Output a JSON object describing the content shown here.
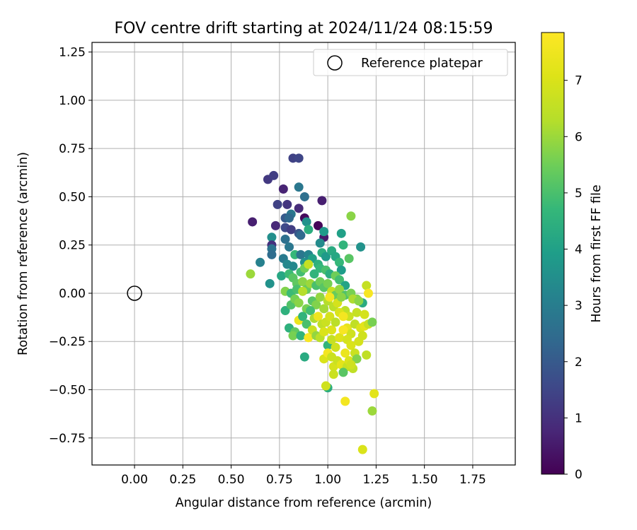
{
  "chart_data": {
    "type": "scatter",
    "title": "FOV centre drift starting at 2024/11/24 08:15:59",
    "xlabel": "Angular distance from reference (arcmin)",
    "ylabel": "Rotation from reference (arcmin)",
    "xlim": [
      -0.22,
      1.97
    ],
    "ylim": [
      -0.89,
      1.3
    ],
    "xticks": [
      0.0,
      0.25,
      0.5,
      0.75,
      1.0,
      1.25,
      1.5,
      1.75
    ],
    "xtick_labels": [
      "0.00",
      "0.25",
      "0.50",
      "0.75",
      "1.00",
      "1.25",
      "1.50",
      "1.75"
    ],
    "yticks": [
      1.25,
      1.0,
      0.75,
      0.5,
      0.25,
      0.0,
      -0.25,
      -0.5,
      -0.75
    ],
    "ytick_labels": [
      "1.25",
      "1.00",
      "0.75",
      "0.50",
      "0.25",
      "0.00",
      "−0.25",
      "−0.50",
      "−0.75"
    ],
    "grid": true,
    "legend": {
      "position": "top-right",
      "entries": [
        "Reference platepar"
      ]
    },
    "reference": {
      "x": 0.0,
      "y": 0.0,
      "label": "Reference platepar"
    },
    "colorbar": {
      "label": "Hours from first FF file",
      "range": [
        0,
        7.85
      ],
      "ticks": [
        0,
        1,
        2,
        3,
        4,
        5,
        6,
        7
      ],
      "colormap": "viridis"
    },
    "points": [
      [
        0.69,
        0.59,
        1.2
      ],
      [
        0.72,
        0.61,
        1.3
      ],
      [
        0.82,
        0.7,
        1.4
      ],
      [
        0.85,
        0.7,
        1.5
      ],
      [
        0.77,
        0.54,
        0.7
      ],
      [
        0.85,
        0.55,
        2.8
      ],
      [
        0.88,
        0.5,
        2.6
      ],
      [
        0.74,
        0.46,
        1.4
      ],
      [
        0.79,
        0.46,
        1.1
      ],
      [
        0.85,
        0.44,
        0.9
      ],
      [
        0.97,
        0.48,
        0.6
      ],
      [
        0.61,
        0.37,
        0.6
      ],
      [
        0.73,
        0.35,
        0.8
      ],
      [
        0.78,
        0.39,
        2.0
      ],
      [
        0.81,
        0.41,
        2.8
      ],
      [
        0.8,
        0.39,
        2.4
      ],
      [
        0.88,
        0.39,
        0.2
      ],
      [
        0.89,
        0.37,
        3.6
      ],
      [
        0.95,
        0.35,
        0.1
      ],
      [
        0.98,
        0.29,
        0.5
      ],
      [
        0.71,
        0.29,
        3.5
      ],
      [
        0.71,
        0.25,
        1.0
      ],
      [
        0.71,
        0.23,
        2.7
      ],
      [
        0.71,
        0.2,
        2.5
      ],
      [
        0.78,
        0.28,
        2.6
      ],
      [
        0.78,
        0.34,
        1.6
      ],
      [
        0.81,
        0.33,
        1.3
      ],
      [
        0.8,
        0.24,
        2.8
      ],
      [
        0.85,
        0.31,
        1.9
      ],
      [
        0.86,
        0.3,
        2.4
      ],
      [
        0.9,
        0.33,
        4.4
      ],
      [
        0.96,
        0.26,
        3.4
      ],
      [
        0.98,
        0.32,
        3.8
      ],
      [
        1.07,
        0.31,
        4.0
      ],
      [
        1.12,
        0.4,
        5.8
      ],
      [
        1.08,
        0.25,
        4.6
      ],
      [
        1.17,
        0.24,
        3.6
      ],
      [
        0.65,
        0.16,
        3.1
      ],
      [
        0.6,
        0.1,
        6.0
      ],
      [
        0.7,
        0.05,
        3.6
      ],
      [
        0.77,
        0.18,
        2.9
      ],
      [
        0.79,
        0.15,
        3.3
      ],
      [
        0.82,
        0.14,
        3.3
      ],
      [
        0.83,
        0.2,
        4.7
      ],
      [
        0.86,
        0.2,
        2.8
      ],
      [
        0.88,
        0.16,
        3.6
      ],
      [
        0.9,
        0.2,
        3.2
      ],
      [
        0.92,
        0.18,
        4.0
      ],
      [
        0.95,
        0.15,
        4.5
      ],
      [
        0.97,
        0.21,
        4.4
      ],
      [
        0.99,
        0.19,
        3.8
      ],
      [
        1.02,
        0.22,
        4.3
      ],
      [
        1.04,
        0.19,
        4.2
      ],
      [
        1.06,
        0.16,
        4.7
      ],
      [
        1.11,
        0.18,
        5.2
      ],
      [
        1.07,
        0.12,
        3.9
      ],
      [
        0.76,
        0.09,
        4.2
      ],
      [
        0.8,
        0.1,
        4.8
      ],
      [
        0.82,
        0.08,
        5.2
      ],
      [
        0.84,
        0.05,
        5.3
      ],
      [
        0.86,
        0.11,
        4.9
      ],
      [
        0.88,
        0.13,
        5.5
      ],
      [
        0.9,
        0.15,
        6.6
      ],
      [
        0.93,
        0.1,
        4.6
      ],
      [
        0.96,
        0.13,
        4.7
      ],
      [
        0.99,
        0.12,
        5.0
      ],
      [
        1.01,
        0.1,
        4.4
      ],
      [
        1.04,
        0.09,
        5.5
      ],
      [
        1.06,
        0.07,
        4.9
      ],
      [
        1.09,
        0.04,
        4.1
      ],
      [
        0.78,
        0.01,
        5.7
      ],
      [
        0.81,
        0.0,
        4.8
      ],
      [
        0.84,
        0.02,
        5.0
      ],
      [
        0.87,
        0.06,
        5.8
      ],
      [
        0.89,
        0.02,
        5.4
      ],
      [
        0.91,
        0.05,
        6.0
      ],
      [
        0.94,
        0.04,
        5.0
      ],
      [
        0.96,
        0.06,
        5.5
      ],
      [
        0.98,
        0.03,
        5.2
      ],
      [
        1.0,
        0.05,
        5.6
      ],
      [
        1.02,
        0.01,
        6.6
      ],
      [
        1.04,
        -0.01,
        5.4
      ],
      [
        1.06,
        0.02,
        5.9
      ],
      [
        1.09,
        -0.01,
        5.1
      ],
      [
        1.12,
        0.0,
        5.6
      ],
      [
        1.15,
        -0.03,
        5.7
      ],
      [
        1.18,
        -0.05,
        4.3
      ],
      [
        1.2,
        0.04,
        6.6
      ],
      [
        1.21,
        0.0,
        7.7
      ],
      [
        0.78,
        -0.09,
        4.5
      ],
      [
        0.81,
        -0.06,
        5.1
      ],
      [
        0.83,
        -0.03,
        5.6
      ],
      [
        0.85,
        -0.05,
        5.8
      ],
      [
        0.87,
        0.01,
        6.3
      ],
      [
        0.89,
        -0.08,
        5.6
      ],
      [
        0.92,
        -0.04,
        5.2
      ],
      [
        0.94,
        -0.06,
        5.7
      ],
      [
        0.96,
        -0.02,
        5.9
      ],
      [
        0.98,
        -0.08,
        6.1
      ],
      [
        1.0,
        -0.04,
        6.3
      ],
      [
        1.01,
        -0.02,
        7.6
      ],
      [
        1.03,
        -0.07,
        6.4
      ],
      [
        1.05,
        -0.05,
        6.9
      ],
      [
        1.07,
        -0.02,
        5.8
      ],
      [
        1.09,
        -0.09,
        6.4
      ],
      [
        1.11,
        -0.12,
        6.7
      ],
      [
        1.13,
        -0.03,
        6.2
      ],
      [
        1.15,
        -0.1,
        6.6
      ],
      [
        1.16,
        -0.04,
        5.8
      ],
      [
        1.19,
        -0.11,
        6.9
      ],
      [
        0.8,
        -0.18,
        4.5
      ],
      [
        0.83,
        -0.2,
        5.3
      ],
      [
        0.85,
        -0.14,
        7.4
      ],
      [
        0.87,
        -0.12,
        4.6
      ],
      [
        0.89,
        -0.16,
        5.0
      ],
      [
        0.91,
        -0.09,
        4.9
      ],
      [
        0.93,
        -0.13,
        6.2
      ],
      [
        0.95,
        -0.12,
        7.5
      ],
      [
        0.97,
        -0.16,
        6.5
      ],
      [
        0.99,
        -0.15,
        6.7
      ],
      [
        1.01,
        -0.12,
        6.9
      ],
      [
        1.02,
        -0.19,
        7.1
      ],
      [
        1.04,
        -0.15,
        6.4
      ],
      [
        1.06,
        -0.1,
        7.0
      ],
      [
        1.08,
        -0.12,
        7.6
      ],
      [
        1.1,
        -0.18,
        7.3
      ],
      [
        1.12,
        -0.21,
        6.8
      ],
      [
        1.14,
        -0.16,
        6.5
      ],
      [
        1.17,
        -0.18,
        7.0
      ],
      [
        1.19,
        -0.17,
        7.2
      ],
      [
        1.21,
        -0.16,
        6.6
      ],
      [
        1.23,
        -0.15,
        5.6
      ],
      [
        0.82,
        -0.22,
        5.6
      ],
      [
        0.86,
        -0.22,
        4.6
      ],
      [
        0.88,
        -0.33,
        4.3
      ],
      [
        0.9,
        -0.23,
        7.7
      ],
      [
        0.92,
        -0.19,
        6.7
      ],
      [
        0.94,
        -0.22,
        5.9
      ],
      [
        0.96,
        -0.23,
        6.4
      ],
      [
        0.98,
        -0.2,
        7.0
      ],
      [
        1.0,
        -0.27,
        4.6
      ],
      [
        1.02,
        -0.24,
        6.6
      ],
      [
        1.04,
        -0.28,
        6.8
      ],
      [
        1.06,
        -0.23,
        7.1
      ],
      [
        1.08,
        -0.19,
        7.7
      ],
      [
        1.1,
        -0.24,
        6.9
      ],
      [
        1.12,
        -0.27,
        7.0
      ],
      [
        1.14,
        -0.31,
        6.7
      ],
      [
        1.16,
        -0.25,
        6.9
      ],
      [
        1.18,
        -0.22,
        6.8
      ],
      [
        0.98,
        -0.34,
        7.0
      ],
      [
        1.0,
        -0.31,
        7.6
      ],
      [
        1.02,
        -0.33,
        6.7
      ],
      [
        1.03,
        -0.38,
        6.9
      ],
      [
        1.05,
        -0.35,
        6.7
      ],
      [
        1.07,
        -0.37,
        7.2
      ],
      [
        1.09,
        -0.31,
        7.4
      ],
      [
        1.1,
        -0.38,
        6.6
      ],
      [
        1.11,
        -0.35,
        7.0
      ],
      [
        1.13,
        -0.39,
        6.5
      ],
      [
        1.15,
        -0.34,
        5.7
      ],
      [
        1.2,
        -0.32,
        6.5
      ],
      [
        1.03,
        -0.42,
        6.7
      ],
      [
        1.08,
        -0.41,
        5.2
      ],
      [
        1.12,
        -0.37,
        6.8
      ],
      [
        1.0,
        -0.49,
        4.4
      ],
      [
        0.99,
        -0.48,
        6.8
      ],
      [
        1.24,
        -0.52,
        7.2
      ],
      [
        1.09,
        -0.56,
        7.6
      ],
      [
        1.23,
        -0.61,
        6.0
      ],
      [
        1.18,
        -0.81,
        7.0
      ]
    ]
  }
}
